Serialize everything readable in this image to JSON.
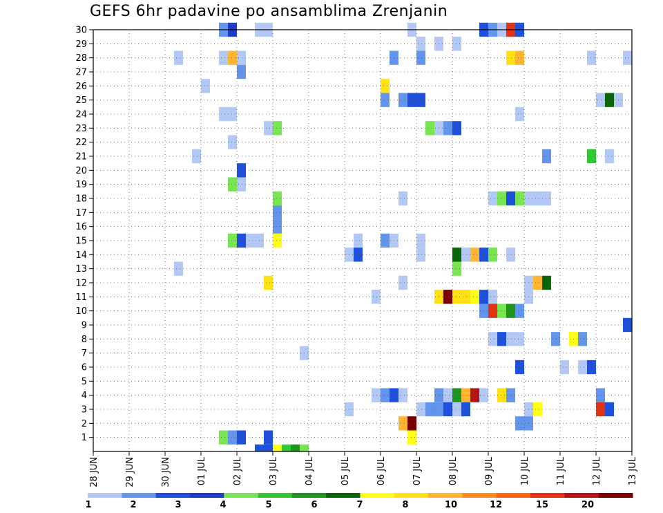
{
  "chart_data": {
    "type": "heatmap",
    "title": "GEFS 6hr padavine po ansamblima Zrenjanin",
    "x_tick_labels": [
      "28 JUN",
      "29 JUN",
      "30 JUN",
      "01 JUL",
      "02 JUL",
      "03 JUL",
      "04 JUL",
      "05 JUL",
      "06 JUL",
      "07 JUL",
      "08 JUL",
      "09 JUL",
      "10 JUL",
      "11 JUL",
      "12 JUL",
      "13 JUL"
    ],
    "x_range_days": [
      0,
      15
    ],
    "y_tick_labels": [
      1,
      2,
      3,
      4,
      5,
      6,
      7,
      8,
      9,
      10,
      11,
      12,
      13,
      14,
      15,
      16,
      17,
      18,
      19,
      20,
      21,
      22,
      23,
      24,
      25,
      26,
      27,
      28,
      29,
      30
    ],
    "y_range": [
      0,
      30
    ],
    "grid": true,
    "colorbar": {
      "levels": [
        "1",
        "2",
        "3",
        "4",
        "5",
        "6",
        "7",
        "8",
        "10",
        "12",
        "15",
        "20"
      ],
      "colors": [
        "#b4c8f5",
        "#6495ed",
        "#1e50dc",
        "#1e3cc8",
        "#78e650",
        "#32c832",
        "#1e961e",
        "#0a640a",
        "#ffff14",
        "#ffe114",
        "#ffb432",
        "#ff8c1e",
        "#ff6414",
        "#e63214",
        "#b41414",
        "#780000"
      ]
    },
    "cells": [
      [
        30,
        3.5,
        2
      ],
      [
        30,
        3.75,
        4
      ],
      [
        30,
        4.5,
        1
      ],
      [
        30,
        4.75,
        1
      ],
      [
        30,
        8.75,
        1
      ],
      [
        30,
        10.75,
        3
      ],
      [
        30,
        11,
        2
      ],
      [
        30,
        11.25,
        1
      ],
      [
        30,
        11.5,
        14
      ],
      [
        30,
        11.75,
        3
      ],
      [
        29,
        9,
        1
      ],
      [
        29,
        9.5,
        1
      ],
      [
        29,
        10,
        1
      ],
      [
        28,
        2.25,
        1
      ],
      [
        28,
        3.5,
        1
      ],
      [
        28,
        3.75,
        11
      ],
      [
        28,
        4,
        1
      ],
      [
        28,
        8.25,
        2
      ],
      [
        28,
        9,
        2
      ],
      [
        28,
        11.5,
        10
      ],
      [
        28,
        11.75,
        11
      ],
      [
        28,
        13.75,
        1
      ],
      [
        28,
        14.75,
        1
      ],
      [
        27,
        4,
        2
      ],
      [
        26,
        3,
        1
      ],
      [
        26,
        8,
        10
      ],
      [
        25,
        8,
        2
      ],
      [
        25,
        8.5,
        2
      ],
      [
        25,
        8.75,
        3
      ],
      [
        25,
        9,
        3
      ],
      [
        25,
        14,
        1
      ],
      [
        25,
        14.25,
        8
      ],
      [
        25,
        14.5,
        1
      ],
      [
        24,
        3.5,
        1
      ],
      [
        24,
        3.75,
        1
      ],
      [
        24,
        11.75,
        1
      ],
      [
        23,
        4.75,
        1
      ],
      [
        23,
        5,
        5
      ],
      [
        23,
        9.25,
        5
      ],
      [
        23,
        9.5,
        1
      ],
      [
        23,
        9.75,
        2
      ],
      [
        23,
        10,
        3
      ],
      [
        22,
        3.75,
        1
      ],
      [
        21,
        2.75,
        1
      ],
      [
        21,
        12.5,
        2
      ],
      [
        21,
        13.75,
        6
      ],
      [
        21,
        14.25,
        1
      ],
      [
        20,
        4,
        3
      ],
      [
        19,
        3.75,
        5
      ],
      [
        19,
        4,
        1
      ],
      [
        18,
        5,
        5
      ],
      [
        18,
        8.5,
        1
      ],
      [
        18,
        11,
        1
      ],
      [
        18,
        11.25,
        5
      ],
      [
        18,
        11.5,
        3
      ],
      [
        18,
        11.75,
        5
      ],
      [
        18,
        12,
        1
      ],
      [
        18,
        12.25,
        1
      ],
      [
        18,
        12.5,
        1
      ],
      [
        17,
        5,
        2
      ],
      [
        16,
        5,
        2
      ],
      [
        15,
        3.75,
        5
      ],
      [
        15,
        4,
        3
      ],
      [
        15,
        4.25,
        1
      ],
      [
        15,
        4.5,
        1
      ],
      [
        15,
        5,
        9
      ],
      [
        15,
        7.25,
        1
      ],
      [
        15,
        8,
        2
      ],
      [
        15,
        8.25,
        1
      ],
      [
        15,
        9,
        1
      ],
      [
        14,
        7,
        1
      ],
      [
        14,
        7.25,
        3
      ],
      [
        14,
        9,
        1
      ],
      [
        14,
        10,
        8
      ],
      [
        14,
        10.25,
        1
      ],
      [
        14,
        10.5,
        11
      ],
      [
        14,
        10.75,
        3
      ],
      [
        14,
        11,
        5
      ],
      [
        14,
        11.5,
        1
      ],
      [
        13,
        2.25,
        1
      ],
      [
        13,
        10,
        5
      ],
      [
        12,
        4.75,
        10
      ],
      [
        12,
        8.5,
        1
      ],
      [
        12,
        12,
        1
      ],
      [
        12,
        12.25,
        11
      ],
      [
        12,
        12.5,
        8
      ],
      [
        11,
        7.75,
        1
      ],
      [
        11,
        9.5,
        10
      ],
      [
        11,
        9.75,
        16
      ],
      [
        11,
        10,
        10
      ],
      [
        11,
        10.25,
        10
      ],
      [
        11,
        10.5,
        9
      ],
      [
        11,
        10.75,
        3
      ],
      [
        11,
        11,
        1
      ],
      [
        11,
        12,
        1
      ],
      [
        10,
        10.75,
        2
      ],
      [
        10,
        11,
        14
      ],
      [
        10,
        11.25,
        5
      ],
      [
        10,
        11.5,
        7
      ],
      [
        10,
        11.75,
        2
      ],
      [
        9,
        14.75,
        3
      ],
      [
        8,
        11,
        1
      ],
      [
        8,
        11.25,
        3
      ],
      [
        8,
        11.5,
        1
      ],
      [
        8,
        11.75,
        1
      ],
      [
        8,
        12.75,
        2
      ],
      [
        8,
        13.25,
        9
      ],
      [
        8,
        13.5,
        2
      ],
      [
        7,
        5.75,
        1
      ],
      [
        6,
        11.75,
        3
      ],
      [
        6,
        13,
        1
      ],
      [
        6,
        13.5,
        1
      ],
      [
        6,
        13.75,
        3
      ],
      [
        4,
        7.75,
        1
      ],
      [
        4,
        8,
        2
      ],
      [
        4,
        8.25,
        3
      ],
      [
        4,
        8.5,
        1
      ],
      [
        4,
        9.5,
        2
      ],
      [
        4,
        9.75,
        1
      ],
      [
        4,
        10,
        7
      ],
      [
        4,
        10.25,
        11
      ],
      [
        4,
        10.5,
        15
      ],
      [
        4,
        10.75,
        1
      ],
      [
        4,
        11.25,
        10
      ],
      [
        4,
        11.5,
        2
      ],
      [
        4,
        14,
        2
      ],
      [
        3,
        7,
        1
      ],
      [
        3,
        9,
        1
      ],
      [
        3,
        9.25,
        2
      ],
      [
        3,
        9.5,
        2
      ],
      [
        3,
        9.75,
        3
      ],
      [
        3,
        10,
        1
      ],
      [
        3,
        10.25,
        3
      ],
      [
        3,
        12,
        1
      ],
      [
        3,
        12.25,
        9
      ],
      [
        3,
        14,
        14
      ],
      [
        3,
        14.25,
        3
      ],
      [
        2,
        8.5,
        11
      ],
      [
        2,
        8.75,
        16
      ],
      [
        2,
        11.75,
        2
      ],
      [
        2,
        12,
        2
      ],
      [
        1,
        3.5,
        5
      ],
      [
        1,
        3.75,
        2
      ],
      [
        1,
        4,
        3
      ],
      [
        1,
        4.75,
        3
      ],
      [
        1,
        8.75,
        9
      ],
      [
        0,
        4.5,
        3
      ],
      [
        0,
        4.75,
        3
      ],
      [
        0,
        5,
        9
      ],
      [
        0,
        5.25,
        6
      ],
      [
        0,
        5.5,
        7
      ],
      [
        0,
        5.75,
        5
      ]
    ]
  }
}
